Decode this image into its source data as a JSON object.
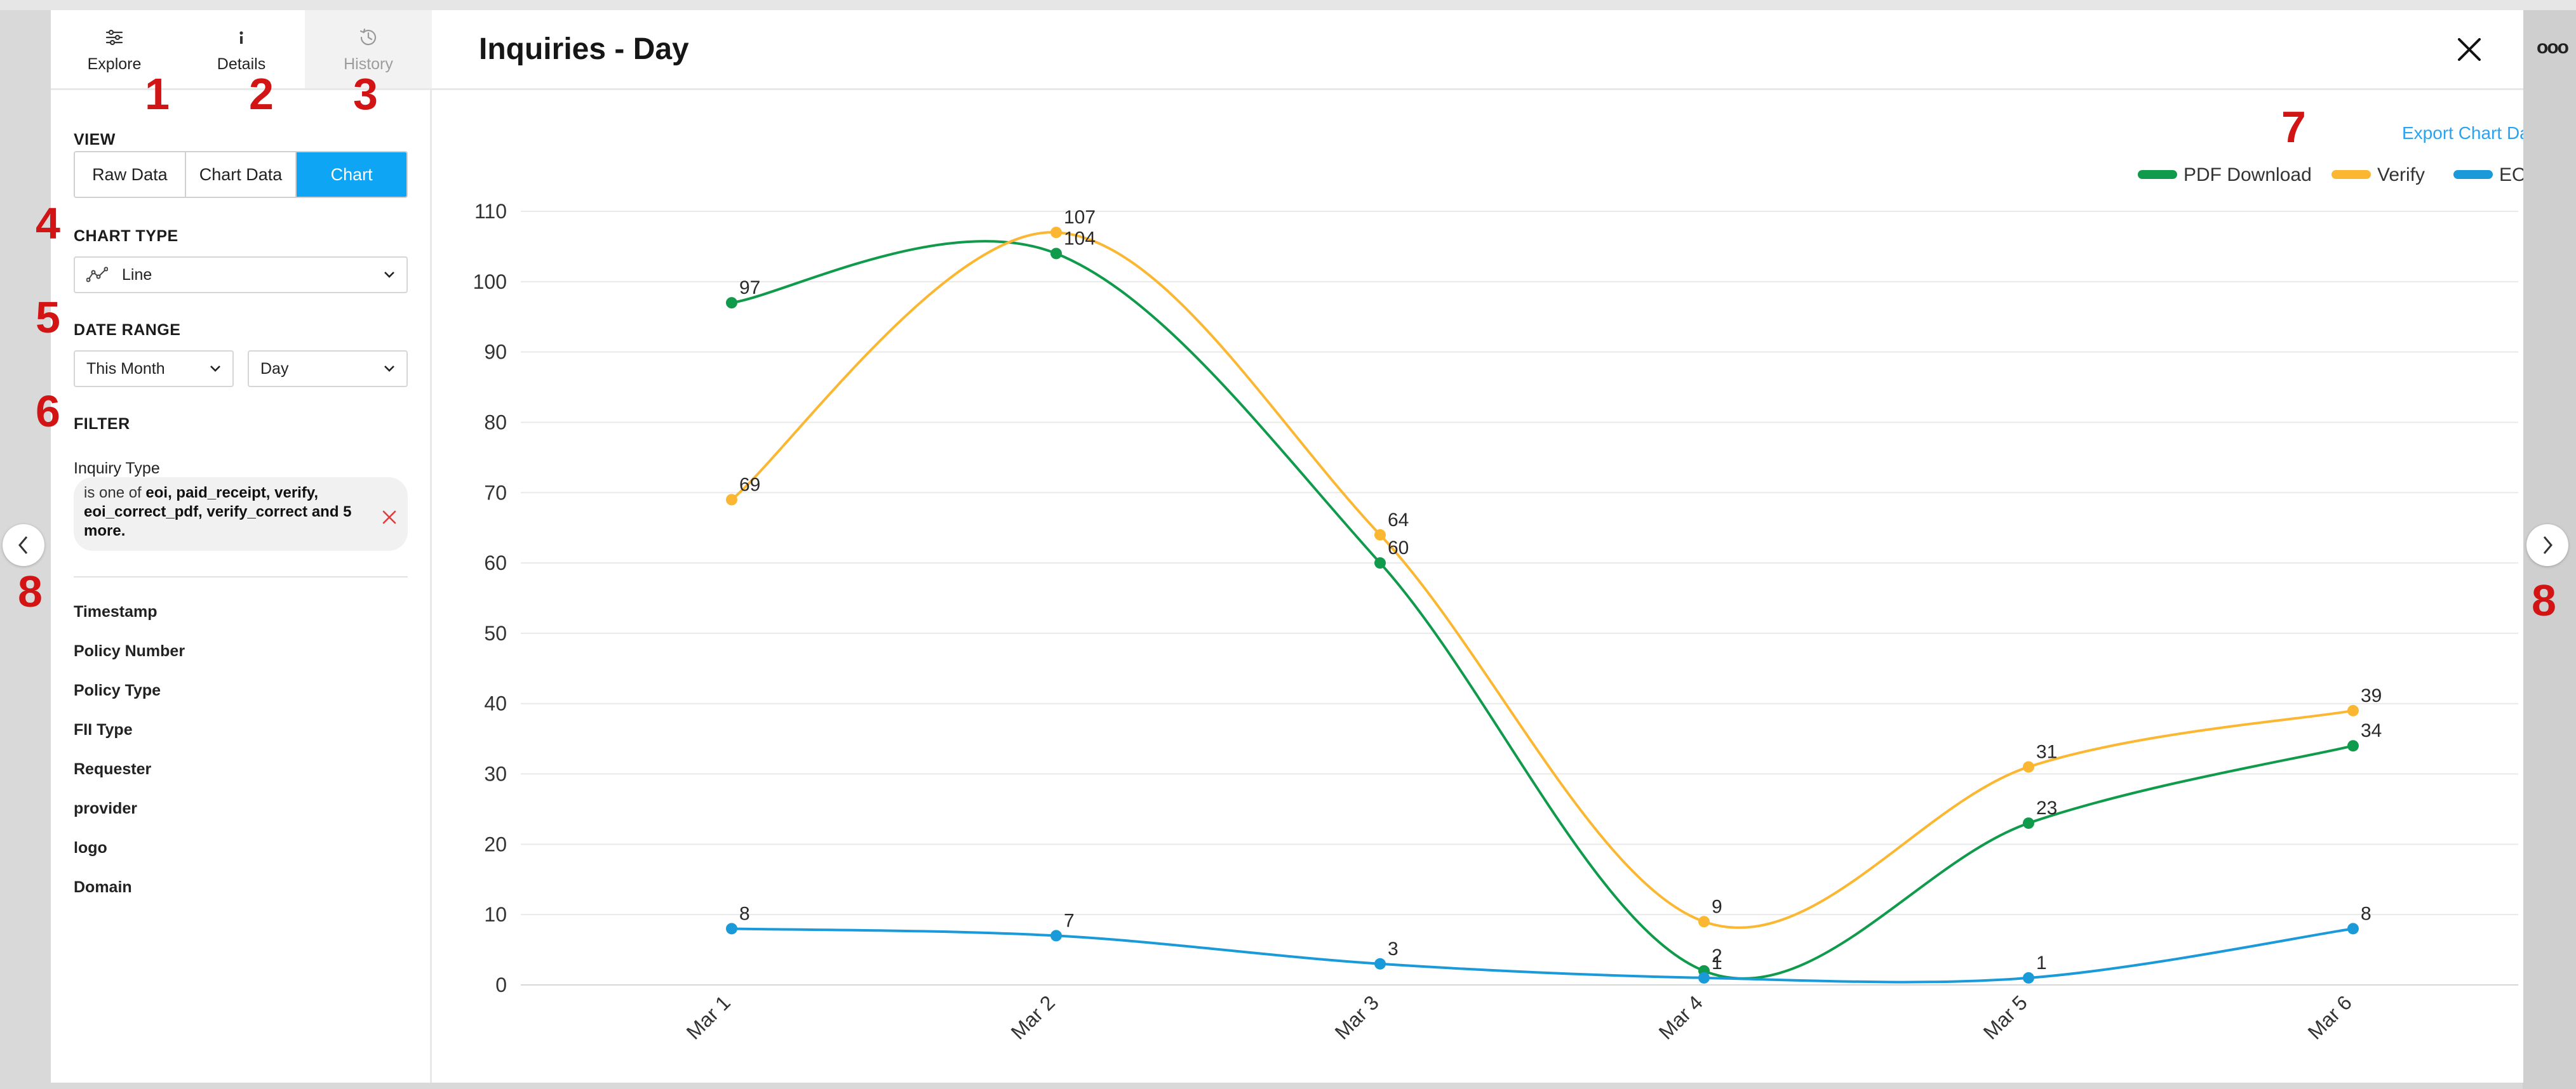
{
  "sidebar": {
    "tabs": [
      {
        "label": "Explore",
        "icon": "sliders-icon",
        "state": "active"
      },
      {
        "label": "Details",
        "icon": "info-icon",
        "state": "normal"
      },
      {
        "label": "History",
        "icon": "history-icon",
        "state": "disabled"
      }
    ],
    "view_label": "VIEW",
    "view_options": [
      {
        "label": "Raw Data",
        "active": false
      },
      {
        "label": "Chart Data",
        "active": false
      },
      {
        "label": "Chart",
        "active": true
      }
    ],
    "chart_type_label": "CHART TYPE",
    "chart_type_value": "Line",
    "date_range_label": "DATE RANGE",
    "date_range_value": "This Month",
    "granularity_value": "Day",
    "filter_label": "FILTER",
    "filter_field": "Inquiry Type",
    "filter_prefix": "is one of",
    "filter_values": "eoi, paid_receipt, verify, eoi_correct_pdf, verify_correct and 5 more.",
    "fields": [
      "Timestamp",
      "Policy Number",
      "Policy Type",
      "FII Type",
      "Requester",
      "provider",
      "logo",
      "Domain"
    ]
  },
  "main": {
    "title": "Inquiries - Day",
    "export_label": "Export Chart Data"
  },
  "annotations": [
    "1",
    "2",
    "3",
    "4",
    "5",
    "6",
    "7",
    "8",
    "8"
  ],
  "colors": {
    "accent": "#0ea5f5",
    "pdf_download": "#109a4b",
    "verify": "#fbb731",
    "eoi": "#1b9ad9",
    "annotation": "#d21414"
  },
  "chart_data": {
    "type": "line",
    "categories": [
      "Mar 1",
      "Mar 2",
      "Mar 3",
      "Mar 4",
      "Mar 5",
      "Mar 6"
    ],
    "series": [
      {
        "name": "PDF Download",
        "color": "#109a4b",
        "values": [
          97,
          104,
          60,
          2,
          23,
          34
        ]
      },
      {
        "name": "Verify",
        "color": "#fbb731",
        "values": [
          69,
          107,
          64,
          9,
          31,
          39
        ]
      },
      {
        "name": "EOI",
        "color": "#1b9ad9",
        "values": [
          8,
          7,
          3,
          1,
          1,
          8
        ]
      }
    ],
    "point_labels": [
      [
        "97",
        "104",
        "60",
        "2",
        "23",
        "34"
      ],
      [
        "69",
        "107",
        "64",
        "9",
        "31",
        "39"
      ],
      [
        "8",
        "7",
        "3",
        "1",
        "1",
        "8"
      ]
    ],
    "yticks": [
      "0",
      "10",
      "20",
      "30",
      "40",
      "50",
      "60",
      "70",
      "80",
      "90",
      "100",
      "110"
    ],
    "ylim": [
      0,
      110
    ],
    "grid": true,
    "legend": "top-right"
  }
}
